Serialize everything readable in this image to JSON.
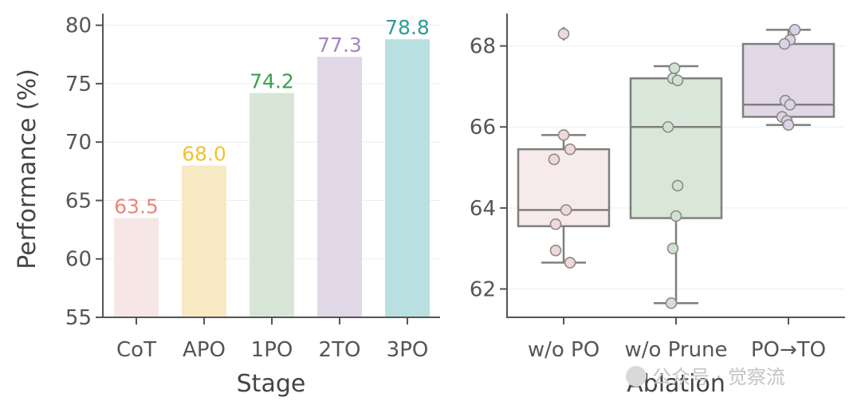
{
  "chart_data": [
    {
      "type": "bar",
      "xlabel": "Stage",
      "ylabel": "Performance (%)",
      "ylim": [
        55,
        81
      ],
      "yticks": [
        55,
        60,
        65,
        70,
        75,
        80
      ],
      "grid": "horizontal, light",
      "categories": [
        "CoT",
        "APO",
        "1PO",
        "2TO",
        "3PO"
      ],
      "values": [
        63.5,
        68.0,
        74.2,
        77.3,
        78.8
      ],
      "value_labels": [
        "63.5",
        "68.0",
        "74.2",
        "77.3",
        "78.8"
      ],
      "bar_colors": [
        "#f7e6e6",
        "#f7e9c4",
        "#d8e6d8",
        "#e0d8e6",
        "#b8e0e0"
      ],
      "label_colors": [
        "#e8877a",
        "#f2c22e",
        "#3ba04e",
        "#a585c1",
        "#2a9d9a"
      ]
    },
    {
      "type": "box",
      "xlabel": "Ablation",
      "ylabel": "",
      "ylim": [
        61.3,
        68.8
      ],
      "yticks": [
        62,
        64,
        66,
        68
      ],
      "grid": "horizontal, light",
      "categories": [
        "w/o PO",
        "w/o Prune",
        "PO→TO"
      ],
      "box_colors": [
        "#f7eaea",
        "#d9e7d9",
        "#e0d8e6"
      ],
      "point_colors": [
        "#f0d8d8",
        "#cfe3cf",
        "#dcd2e6"
      ],
      "boxes": [
        {
          "q1": 63.55,
          "median": 63.95,
          "q3": 65.45,
          "whisker_low": 62.65,
          "whisker_high": 65.8,
          "outliers": [
            68.3
          ]
        },
        {
          "q1": 63.75,
          "median": 66.0,
          "q3": 67.2,
          "whisker_low": 61.65,
          "whisker_high": 67.5,
          "outliers": []
        },
        {
          "q1": 66.25,
          "median": 66.55,
          "q3": 68.05,
          "whisker_low": 66.05,
          "whisker_high": 68.4,
          "outliers": []
        }
      ],
      "points": [
        [
          68.3,
          65.8,
          65.45,
          65.2,
          63.95,
          63.6,
          62.95,
          62.65
        ],
        [
          67.45,
          67.2,
          67.15,
          66.0,
          64.55,
          63.8,
          63.0,
          61.65
        ],
        [
          68.4,
          68.15,
          68.05,
          66.65,
          66.55,
          66.25,
          66.15,
          66.05
        ]
      ],
      "point_jitter": [
        [
          0,
          0,
          0.08,
          -0.12,
          0.03,
          -0.1,
          -0.1,
          0.08
        ],
        [
          -0.02,
          -0.04,
          0.02,
          -0.1,
          0.02,
          0,
          -0.04,
          -0.06
        ],
        [
          0.08,
          0.02,
          -0.05,
          -0.04,
          0.02,
          -0.08,
          -0.02,
          0
        ]
      ]
    }
  ],
  "watermark": "公众号 · 觉察流"
}
